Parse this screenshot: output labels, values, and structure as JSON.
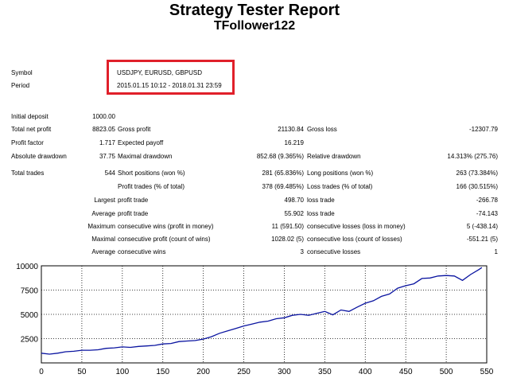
{
  "header": {
    "title": "Strategy Tester Report",
    "subtitle": "TFollower122"
  },
  "info": {
    "symbol_label": "Symbol",
    "symbol_value": "USDJPY, EURUSD, GBPUSD",
    "period_label": "Period",
    "period_value": "2015.01.15 10:12 - 2018.01.31 23:59",
    "highlight_color": "#e0202a"
  },
  "stats": {
    "initial_deposit": {
      "label": "Initial deposit",
      "value": "1000.00"
    },
    "row1": {
      "label": "Total net profit",
      "value": "8823.05",
      "l2": "Gross profit",
      "v2": "21130.84",
      "l3": "Gross loss",
      "v3": "-12307.79"
    },
    "row2": {
      "label": "Profit factor",
      "value": "1.717",
      "l2": "Expected payoff",
      "v2": "16.219"
    },
    "row3": {
      "label": "Absolute drawdown",
      "value": "37.75",
      "l2": "Maximal drawdown",
      "v2": "852.68 (9.365%)",
      "l3": "Relative drawdown",
      "v3": "14.313% (275.76)"
    },
    "row4": {
      "label": "Total trades",
      "value": "544",
      "l2": "Short positions (won %)",
      "v2": "281 (65.836%)",
      "l3": "Long positions (won %)",
      "v3": "263 (73.384%)"
    },
    "row5": {
      "l2": "Profit trades (% of total)",
      "v2": "378 (69.485%)",
      "l3": "Loss trades (% of total)",
      "v3": "166 (30.515%)"
    },
    "row6": {
      "prefix": "Largest",
      "l2": "profit trade",
      "v2": "498.70",
      "l3": "loss trade",
      "v3": "-266.78"
    },
    "row7": {
      "prefix": "Average",
      "l2": "profit trade",
      "v2": "55.902",
      "l3": "loss trade",
      "v3": "-74.143"
    },
    "row8": {
      "prefix": "Maximum",
      "l2": "consecutive wins (profit in money)",
      "v2": "11 (591.50)",
      "l3": "consecutive losses (loss in money)",
      "v3": "5 (-438.14)"
    },
    "row9": {
      "prefix": "Maximal",
      "l2": "consecutive profit (count of wins)",
      "v2": "1028.02 (5)",
      "l3": "consecutive loss (count of losses)",
      "v3": "-551.21 (5)"
    },
    "row10": {
      "prefix": "Average",
      "l2": "consecutive wins",
      "v2": "3",
      "l3": "consecutive losses",
      "v3": "1"
    }
  },
  "chart_data": {
    "type": "line",
    "xlim": [
      0,
      550
    ],
    "ylim": [
      0,
      10000
    ],
    "x_ticks": [
      0,
      50,
      100,
      150,
      200,
      250,
      300,
      350,
      400,
      450,
      500,
      550
    ],
    "y_ticks": [
      2500,
      5000,
      7500,
      10000
    ],
    "grid": true,
    "line_color": "#0a14a0",
    "series": [
      {
        "x": [
          0,
          10,
          20,
          30,
          40,
          50,
          60,
          70,
          80,
          90,
          100,
          110,
          120,
          130,
          140,
          150,
          160,
          170,
          180,
          190,
          200,
          210,
          220,
          230,
          240,
          250,
          260,
          270,
          280,
          290,
          300,
          310,
          320,
          330,
          340,
          350,
          360,
          370,
          380,
          390,
          400,
          410,
          420,
          430,
          440,
          450,
          460,
          470,
          480,
          490,
          500,
          510,
          520,
          530,
          540,
          544
        ],
        "y": [
          1000,
          900,
          1000,
          1150,
          1200,
          1300,
          1300,
          1350,
          1500,
          1550,
          1650,
          1600,
          1700,
          1750,
          1800,
          1950,
          2000,
          2200,
          2250,
          2300,
          2450,
          2700,
          3050,
          3300,
          3550,
          3800,
          4000,
          4200,
          4300,
          4550,
          4650,
          4900,
          5000,
          4900,
          5100,
          5300,
          4950,
          5450,
          5300,
          5750,
          6150,
          6400,
          6850,
          7100,
          7700,
          7950,
          8150,
          8700,
          8750,
          8950,
          9000,
          8950,
          8500,
          9100,
          9600,
          9823
        ]
      }
    ]
  }
}
